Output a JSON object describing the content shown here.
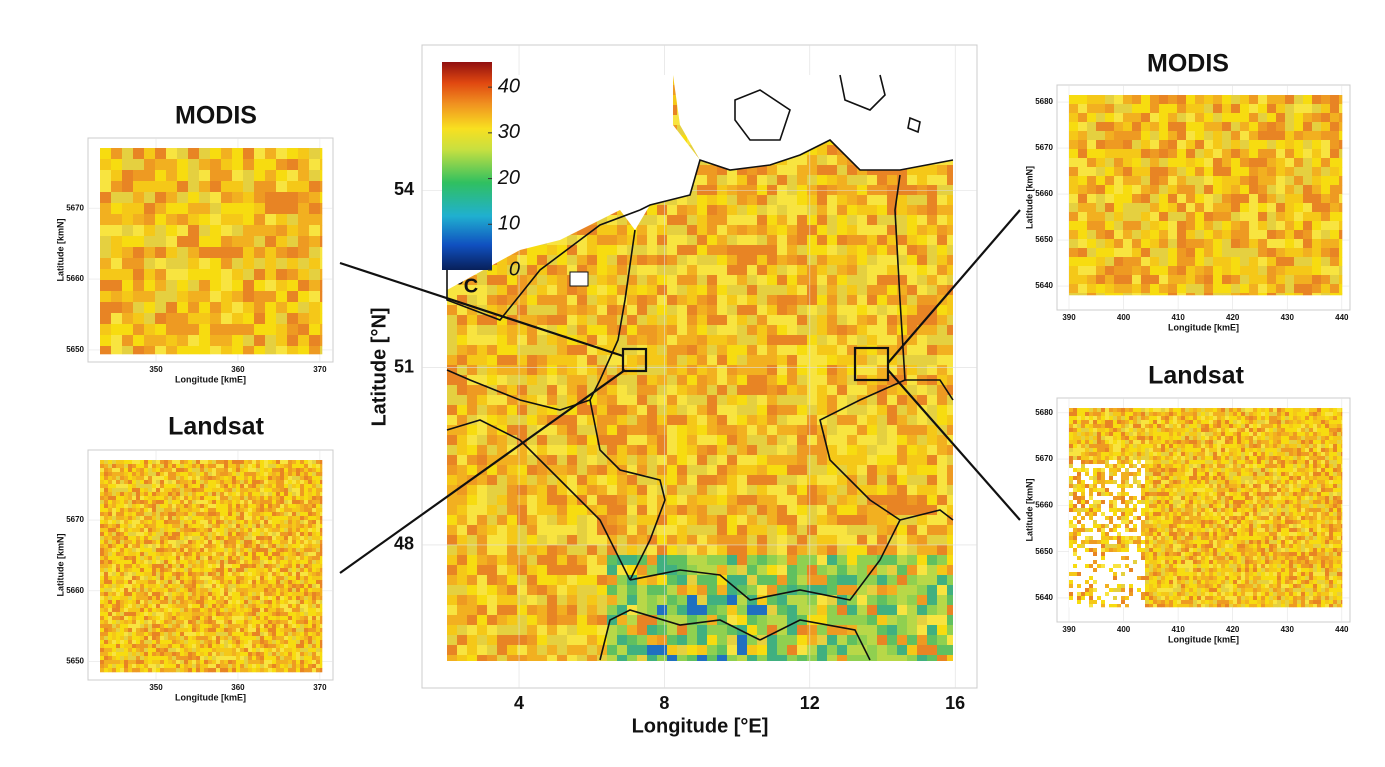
{
  "map": {
    "x_label": "Longitude [°E]",
    "y_label": "Latitude [°N]",
    "xlim": [
      1.33,
      16.6
    ],
    "ylim": [
      45.58,
      56.46
    ],
    "xticks": [
      4,
      8,
      12,
      16
    ],
    "yticks": [
      48,
      51,
      54
    ],
    "colorbar": {
      "label": "°C",
      "lim": [
        0,
        45.5
      ],
      "ticks": [
        0,
        10,
        20,
        30,
        40
      ]
    }
  },
  "panels": [
    {
      "title": "MODIS",
      "x_label": "Longitude [kmE]",
      "y_label": "Latitude [kmN]",
      "xlim": [
        341.7,
        371.6
      ],
      "ylim": [
        5648.3,
        5679.9
      ],
      "xticks": [
        350,
        360,
        370
      ],
      "yticks": [
        5650,
        5660,
        5670
      ]
    },
    {
      "title": "Landsat",
      "x_label": "Longitude [kmE]",
      "y_label": "Latitude [kmN]",
      "xlim": [
        341.7,
        371.6
      ],
      "ylim": [
        5647.4,
        5679.9
      ],
      "xticks": [
        350,
        360,
        370
      ],
      "yticks": [
        5650,
        5660,
        5670
      ]
    },
    {
      "title": "MODIS",
      "x_label": "Longitude [kmE]",
      "y_label": "Latitude [kmN]",
      "xlim": [
        387.8,
        441.5
      ],
      "ylim": [
        5634.8,
        5683.7
      ],
      "xticks": [
        390,
        400,
        410,
        420,
        430,
        440
      ],
      "yticks": [
        5640,
        5650,
        5660,
        5670,
        5680
      ]
    },
    {
      "title": "Landsat",
      "x_label": "Longitude [kmE]",
      "y_label": "Latitude [kmN]",
      "xlim": [
        387.8,
        441.5
      ],
      "ylim": [
        5634.8,
        5683.2
      ],
      "xticks": [
        390,
        400,
        410,
        420,
        430,
        440
      ],
      "yticks": [
        5640,
        5650,
        5660,
        5670,
        5680
      ]
    }
  ]
}
